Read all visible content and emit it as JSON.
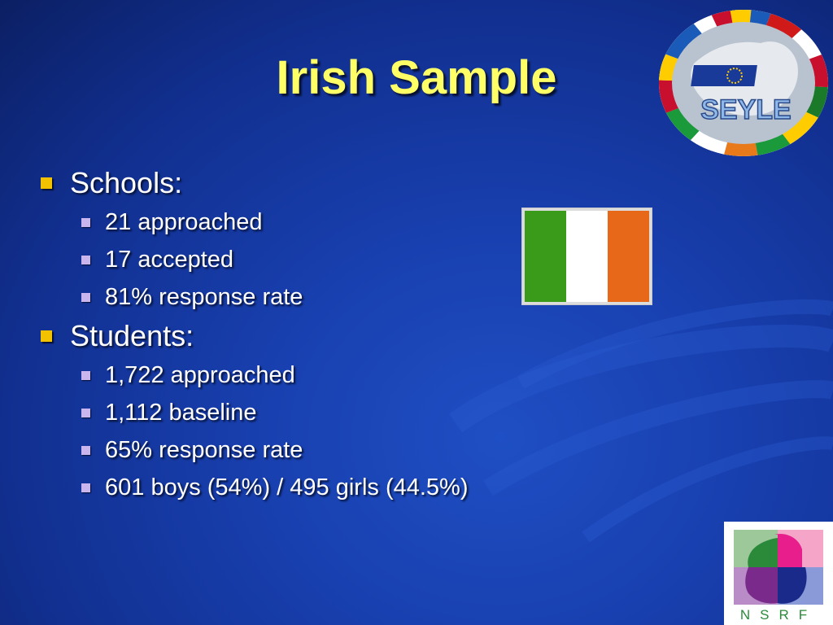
{
  "slide": {
    "title": "Irish Sample",
    "sections": [
      {
        "heading": "Schools:",
        "items": [
          "21 approached",
          "17 accepted",
          "81% response rate"
        ]
      },
      {
        "heading": "Students:",
        "items": [
          "1,722 approached",
          "1,112 baseline",
          "65% response rate",
          "601 boys (54%) / 495 girls (44.5%)"
        ]
      }
    ]
  },
  "logos": {
    "seyle": "SEYLE",
    "nsrf": "NSRF"
  },
  "colors": {
    "title": "#ffff66",
    "flag_green": "#3a9a1a",
    "flag_white": "#ffffff",
    "flag_orange": "#e8681a",
    "bullet_level1": "#f2c200",
    "bullet_level2": "#c9b6ee"
  }
}
